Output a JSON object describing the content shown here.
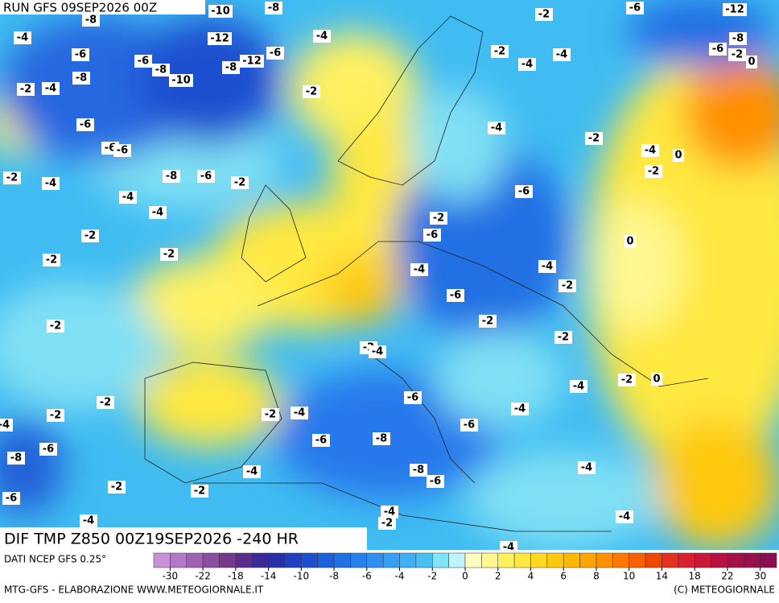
{
  "header": {
    "run": "RUN GFS 09SEP2026 00Z"
  },
  "map": {
    "contour_labels": [
      "-8",
      "-10",
      "-8",
      "-4",
      "-12",
      "-4",
      "-6",
      "-6",
      "-8",
      "-8",
      "-12",
      "-6",
      "-8",
      "-10",
      "-2",
      "-4",
      "-2",
      "-6",
      "-6",
      "-6",
      "-2",
      "-4",
      "-8",
      "-6",
      "-2",
      "-4",
      "-4",
      "-2",
      "-2",
      "-2",
      "-2",
      "-2",
      "-2",
      "-4",
      "-6",
      "-8",
      "-2",
      "-6",
      "-4",
      "-2",
      "-4",
      "-2",
      "-4",
      "-6",
      "-8",
      "-6",
      "-6",
      "-8",
      "-6",
      "-4",
      "-2",
      "-4",
      "-4",
      "-4",
      "-4",
      "-4",
      "-2",
      "0",
      "-2",
      "-2",
      "-6",
      "-2",
      "-4",
      "-4",
      "-6",
      "-2",
      "-6",
      "-4",
      "-2",
      "0",
      "-2",
      "-4",
      "0",
      "-2",
      "-4",
      "-2",
      "-4",
      "-4",
      "-2",
      "-6",
      "-12",
      "-8",
      "-6",
      "-2",
      "0"
    ]
  },
  "footer": {
    "title": "DIF TMP Z850 00Z19SEP2026 -240 HR",
    "data_source": "DATI NCEP GFS 0.25°",
    "credit": "MTG-GFS - ELABORAZIONE WWW.METEOGIORNALE.IT",
    "copyright": "(C) METEOGIORNALE"
  },
  "colorbar": {
    "ticks": [
      -30,
      -22,
      -18,
      -14,
      -10,
      -8,
      -6,
      -4,
      -2,
      0,
      2,
      4,
      6,
      8,
      10,
      14,
      18,
      22,
      30
    ],
    "colors": [
      "#c890d8",
      "#b478c8",
      "#a060b4",
      "#8c4ca0",
      "#78388c",
      "#5a2c8c",
      "#3c2896",
      "#2830a8",
      "#2040c0",
      "#1c50d0",
      "#1c60dc",
      "#2070e4",
      "#2880ec",
      "#3090f0",
      "#38a0f4",
      "#40b0f4",
      "#48c0f4",
      "#80e4f4",
      "#c0f4fa",
      "#fffcc0",
      "#fff890",
      "#fff060",
      "#ffe840",
      "#ffd820",
      "#ffc810",
      "#ffb800",
      "#ffa400",
      "#ff9000",
      "#ff7800",
      "#f86000",
      "#f04800",
      "#e83020",
      "#d82030",
      "#c81838",
      "#b81040",
      "#a81048",
      "#981050",
      "#881050"
    ]
  }
}
